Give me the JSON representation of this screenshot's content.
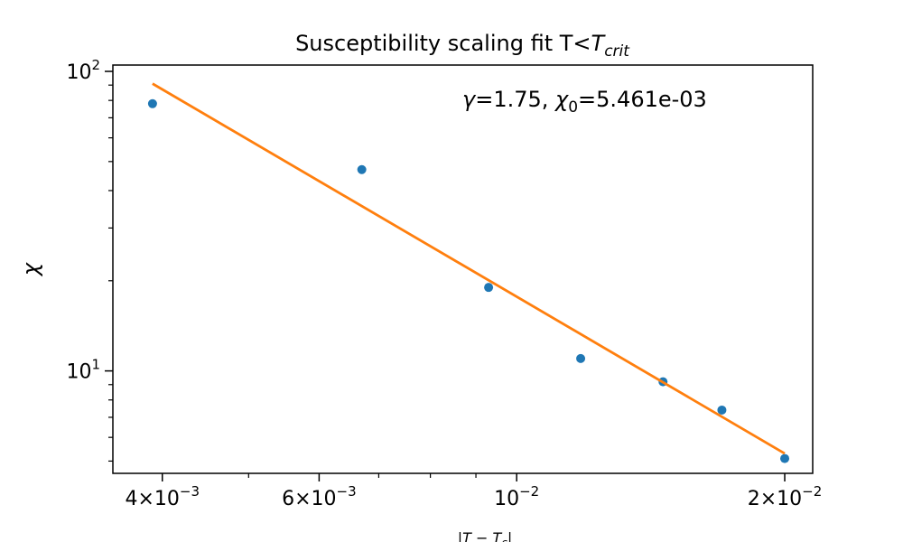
{
  "chart_data": {
    "type": "scatter",
    "title": "Susceptibility scaling fit T<",
    "title_math": "T",
    "title_math_sub": "crit",
    "xlabel": "|T − T",
    "xlabel_sub": "c",
    "xlabel_end": "|",
    "ylabel": "χ",
    "x_scale": "log",
    "y_scale": "log",
    "xlim": [
      0.00352,
      0.0215
    ],
    "ylim": [
      4.55,
      105
    ],
    "grid": false,
    "x_ticks": [
      {
        "value": 0.004,
        "mant": "4×10",
        "exp": "−3"
      },
      {
        "value": 0.006,
        "mant": "6×10",
        "exp": "−3"
      },
      {
        "value": 0.01,
        "mant": "10",
        "exp": "−2"
      },
      {
        "value": 0.02,
        "mant": "2×10",
        "exp": "−2"
      }
    ],
    "x_minor_ticks": [
      0.005,
      0.007,
      0.008,
      0.009
    ],
    "y_ticks": [
      {
        "value": 10,
        "mant": "10",
        "exp": "1"
      },
      {
        "value": 100,
        "mant": "10",
        "exp": "2"
      }
    ],
    "y_minor_ticks": [
      5,
      6,
      7,
      8,
      9,
      20,
      30,
      40,
      50,
      60,
      70,
      80,
      90
    ],
    "series": [
      {
        "kind": "points",
        "color": "#1f77b4",
        "x": [
          0.0039,
          0.0067,
          0.0093,
          0.0118,
          0.0146,
          0.017,
          0.02
        ],
        "y": [
          78,
          47,
          19,
          11,
          9.2,
          7.4,
          5.1
        ]
      },
      {
        "kind": "line",
        "color": "#ff7f0e",
        "x": [
          0.0039,
          0.02
        ],
        "y": [
          91,
          5.3
        ]
      }
    ],
    "annotation": {
      "gamma_sym": "γ",
      "gamma_text": "=1.75, ",
      "chi_sym": "χ",
      "chi_sub": "0",
      "chi_text": "=5.461e-03"
    }
  }
}
